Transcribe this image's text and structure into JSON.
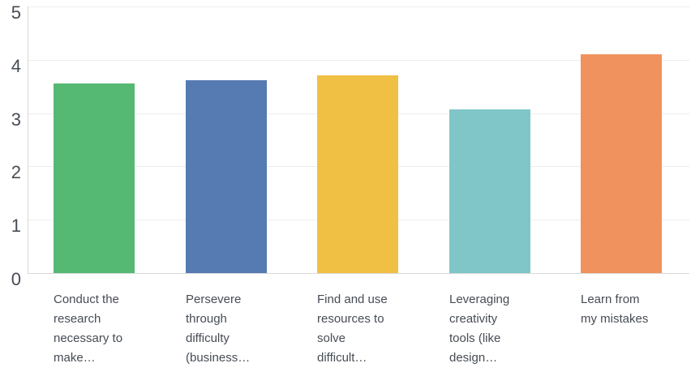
{
  "chart_data": {
    "type": "bar",
    "title": "",
    "xlabel": "",
    "ylabel": "",
    "ylim": [
      0,
      5
    ],
    "yticks": [
      0,
      1,
      2,
      3,
      4,
      5
    ],
    "grid": "horizontal",
    "legend": "none",
    "categories": [
      "Conduct the research necessary to make…",
      "Persevere through difficulty (business…",
      "Find and use resources to solve difficult…",
      "Leveraging creativity tools (like design…",
      "Learn from my mistakes"
    ],
    "category_label_lines": [
      [
        "Conduct the",
        "research",
        "necessary to",
        "make…"
      ],
      [
        "Persevere",
        "through",
        "difficulty",
        "(business…"
      ],
      [
        "Find and use",
        "resources to",
        "solve",
        "difficult…"
      ],
      [
        "Leveraging",
        "creativity",
        "tools (like",
        "design…"
      ],
      [
        "Learn from",
        "my mistakes"
      ]
    ],
    "values": [
      3.56,
      3.62,
      3.71,
      3.07,
      4.11
    ],
    "bar_colors": [
      "#55b973",
      "#567ab2",
      "#f0c044",
      "#80c6c8",
      "#f0925e"
    ],
    "text_color": "#464c55",
    "grid_color": "#ededed",
    "axis_color": "#d9d9d9"
  }
}
